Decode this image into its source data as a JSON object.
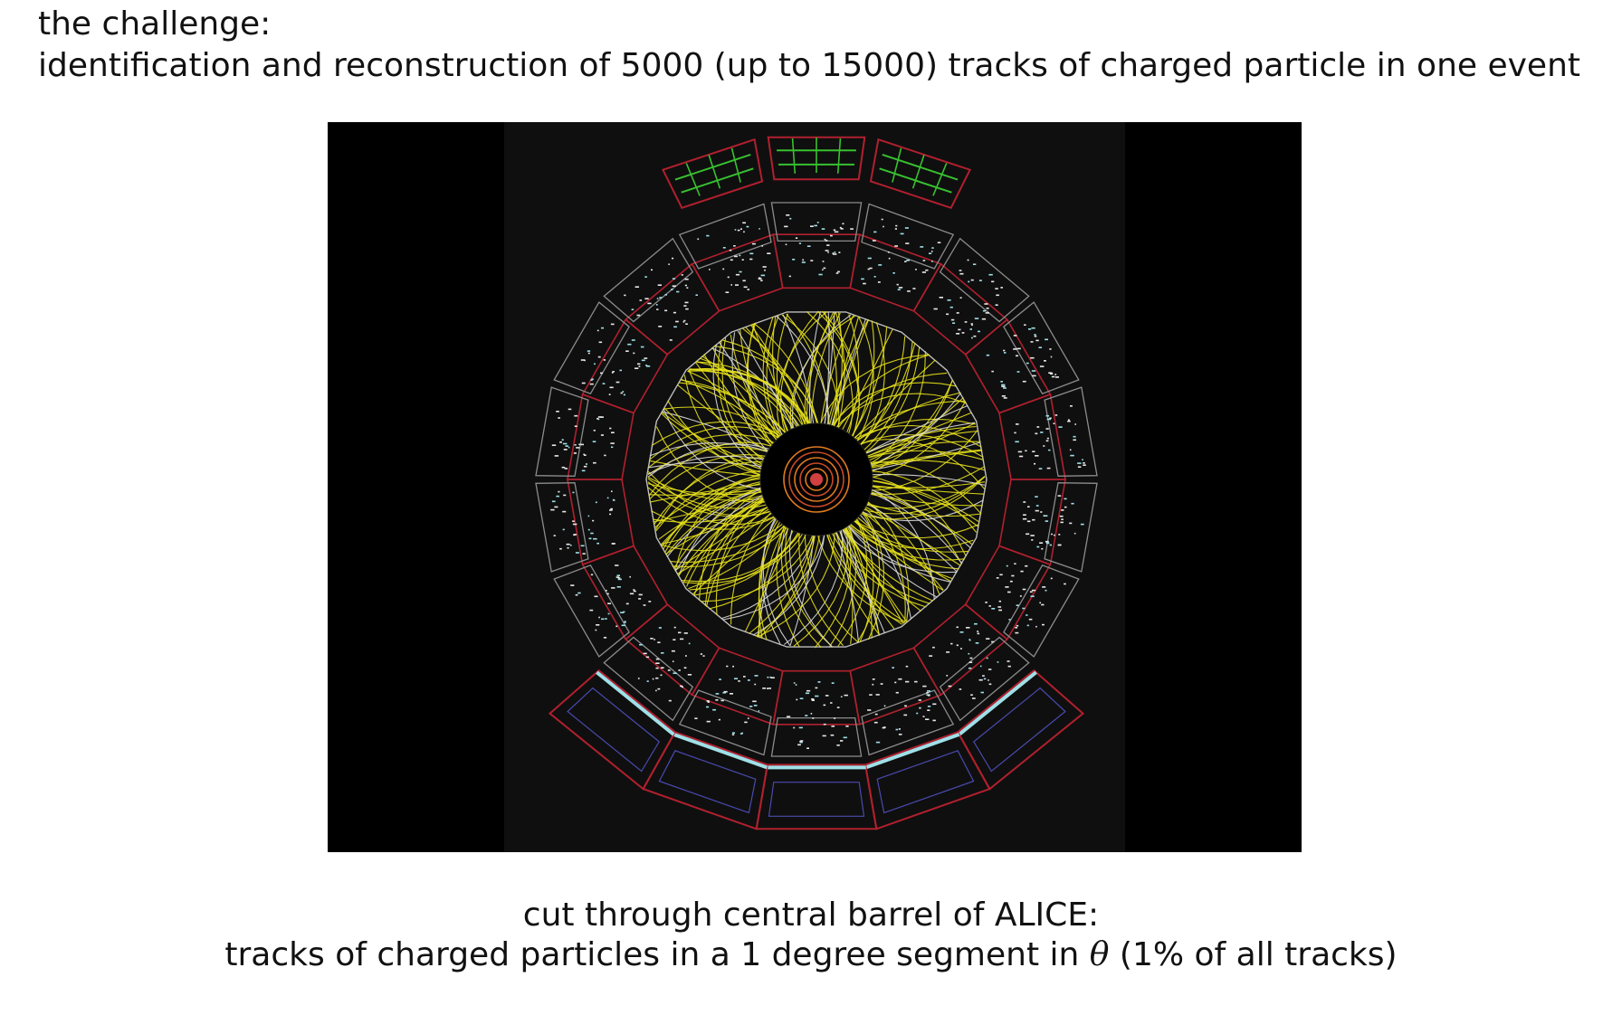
{
  "heading": {
    "line1": "the challenge:",
    "line2": "identification and reconstruction of 5000 (up to 15000) tracks of charged particle in one event"
  },
  "figure": {
    "colors": {
      "background": "#000000",
      "panel": "#0f0f0f",
      "tracks": "#e8e21a",
      "red_frame": "#b0202e",
      "gray_frame": "#8c8c8c",
      "green_modules": "#38c030",
      "cyan_hits": "#9fe0e8",
      "inner_vertex": "#e07a20"
    }
  },
  "caption": {
    "line1": "cut through central barrel of ALICE:",
    "line2_before": "tracks of charged particles in a 1 degree segment in ",
    "symbol": "θ",
    "line2_after": " (1% of all tracks)"
  }
}
